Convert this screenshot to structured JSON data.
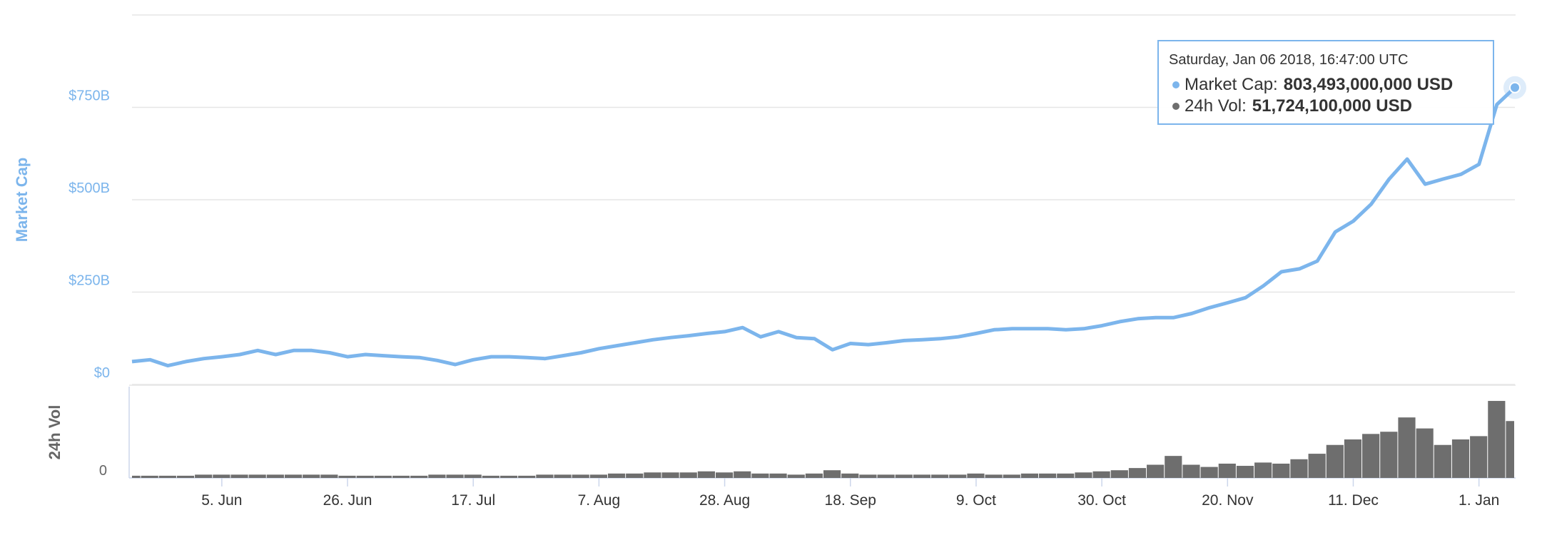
{
  "chart_data": {
    "type": "line",
    "categories": [
      null,
      null,
      null,
      null,
      null,
      "5. Jun",
      null,
      null,
      null,
      null,
      null,
      null,
      "26. Jun",
      null,
      null,
      null,
      null,
      null,
      null,
      "17. Jul",
      null,
      null,
      null,
      null,
      null,
      null,
      "7. Aug",
      null,
      null,
      null,
      null,
      null,
      null,
      "28. Aug",
      null,
      null,
      null,
      null,
      null,
      null,
      "18. Sep",
      null,
      null,
      null,
      null,
      null,
      null,
      "9. Oct",
      null,
      null,
      null,
      null,
      null,
      null,
      "30. Oct",
      null,
      null,
      null,
      null,
      null,
      null,
      "20. Nov",
      null,
      null,
      null,
      null,
      null,
      null,
      "11. Dec",
      null,
      null,
      null,
      null,
      null,
      null,
      "1. Jan",
      null,
      null
    ],
    "series": [
      {
        "name": "Market Cap",
        "color": "#7cb5ec",
        "values": [
          62000000000,
          67000000000,
          51000000000,
          62000000000,
          70000000000,
          75000000000,
          81000000000,
          92000000000,
          81000000000,
          92000000000,
          92000000000,
          86000000000,
          75000000000,
          81000000000,
          78000000000,
          75000000000,
          73000000000,
          65000000000,
          54000000000,
          67000000000,
          75000000000,
          75000000000,
          73000000000,
          70000000000,
          78000000000,
          86000000000,
          97000000000,
          105000000000,
          113000000000,
          121000000000,
          127000000000,
          132000000000,
          138000000000,
          143000000000,
          154000000000,
          129000000000,
          143000000000,
          127000000000,
          124000000000,
          94000000000,
          111000000000,
          108000000000,
          113000000000,
          119000000000,
          121000000000,
          124000000000,
          129000000000,
          138000000000,
          148000000000,
          151000000000,
          151000000000,
          151000000000,
          148000000000,
          151000000000,
          159000000000,
          170000000000,
          178000000000,
          181000000000,
          181000000000,
          192000000000,
          208000000000,
          221000000000,
          235000000000,
          267000000000,
          305000000000,
          313000000000,
          334000000000,
          413000000000,
          442000000000,
          488000000000,
          556000000000,
          610000000000,
          542000000000,
          556000000000,
          569000000000,
          596000000000,
          758000000000,
          803493000000
        ]
      },
      {
        "name": "24h Vol",
        "color": "#6e6e6e",
        "axis": "y2",
        "values": [
          2000000000,
          2000000000,
          2000000000,
          2000000000,
          3000000000,
          3000000000,
          3000000000,
          3000000000,
          3000000000,
          3000000000,
          3000000000,
          3000000000,
          2000000000,
          2000000000,
          2000000000,
          2000000000,
          2000000000,
          3000000000,
          3000000000,
          3000000000,
          2000000000,
          2000000000,
          2000000000,
          3000000000,
          3000000000,
          3000000000,
          3000000000,
          4000000000,
          4000000000,
          5000000000,
          5000000000,
          5000000000,
          6000000000,
          5000000000,
          6000000000,
          4000000000,
          4000000000,
          3000000000,
          4000000000,
          7000000000,
          4000000000,
          3000000000,
          3000000000,
          3000000000,
          3000000000,
          3000000000,
          3000000000,
          4000000000,
          3000000000,
          3000000000,
          4000000000,
          4000000000,
          4000000000,
          5000000000,
          6000000000,
          7000000000,
          9000000000,
          12000000000,
          20000000000,
          12000000000,
          10000000000,
          13000000000,
          11000000000,
          14000000000,
          13000000000,
          17000000000,
          22000000000,
          30000000000,
          35000000000,
          40000000000,
          42000000000,
          55000000000,
          45000000000,
          30000000000,
          35000000000,
          38000000000,
          70000000000,
          51724100000
        ]
      }
    ],
    "ylim": [
      0,
      1000000000000
    ],
    "yticks": [
      {
        "value": 0,
        "label": "$0"
      },
      {
        "value": 250000000000,
        "label": "$250B"
      },
      {
        "value": 500000000000,
        "label": "$500B"
      },
      {
        "value": 750000000000,
        "label": "$750B"
      }
    ],
    "y2lim": [
      0,
      83000000000
    ],
    "y2ticks": [
      0
    ],
    "grid": true,
    "tooltip": {
      "title": "Saturday, Jan 06 2018, 16:47:00 UTC",
      "items": [
        {
          "label": "Market Cap:",
          "value_label": "803,493,000,000 USD"
        },
        {
          "label": "24h Vol:",
          "value_label": "51,724,100,000 USD"
        }
      ]
    }
  }
}
